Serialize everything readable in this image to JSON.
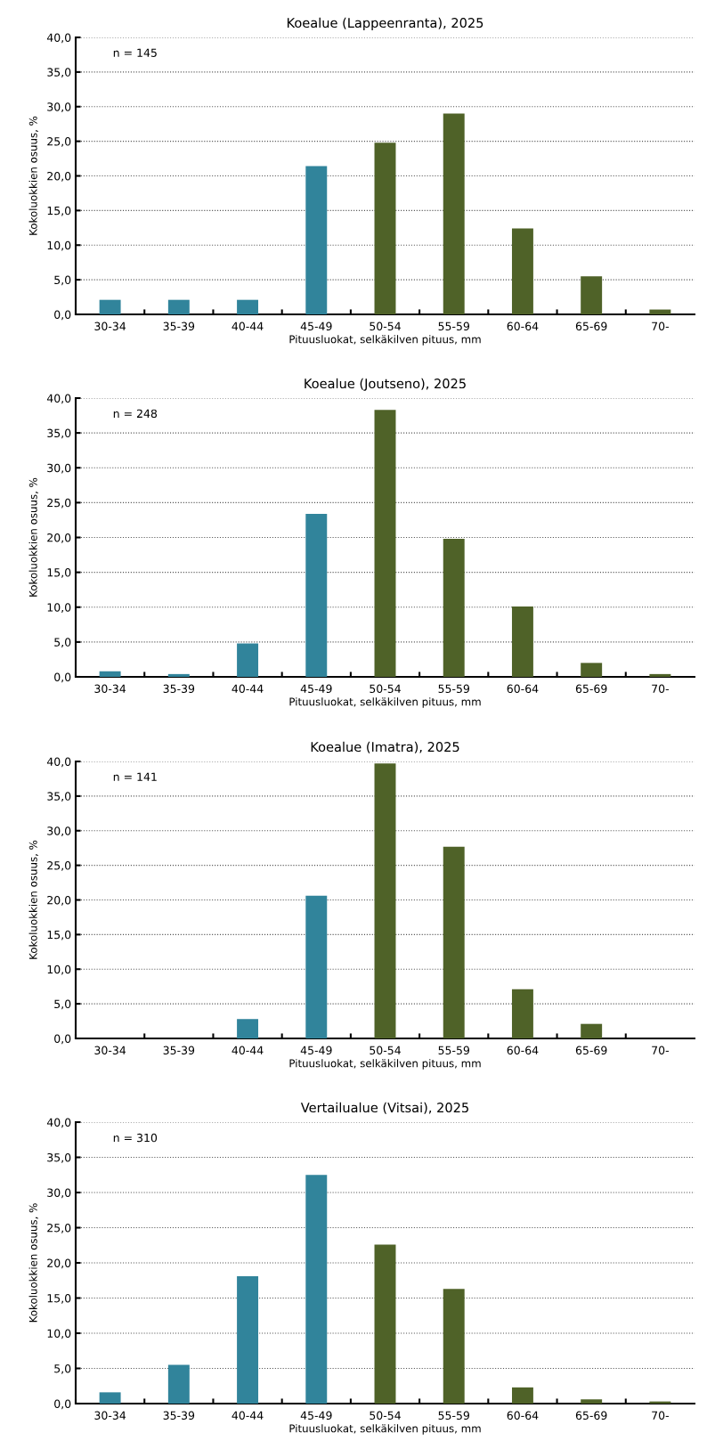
{
  "chart_data": [
    {
      "type": "bar",
      "title": "Koealue (Lappeenranta), 2025",
      "xlabel": "Pituusluokat, selkäkilven pituus, mm",
      "ylabel": "Kokoluokkien osuus, %",
      "categories": [
        "30-34",
        "35-39",
        "40-44",
        "45-49",
        "50-54",
        "55-59",
        "60-64",
        "65-69",
        "70-"
      ],
      "values": [
        2.1,
        2.1,
        2.1,
        21.4,
        24.8,
        29.0,
        12.4,
        5.5,
        0.7
      ],
      "colors": [
        "#31849b",
        "#31849b",
        "#31849b",
        "#31849b",
        "#4f6228",
        "#4f6228",
        "#4f6228",
        "#4f6228",
        "#4f6228"
      ],
      "ylim": [
        0,
        40
      ],
      "yticks": [
        {
          "value": 0,
          "label": "0,0"
        },
        {
          "value": 5,
          "label": "5,0"
        },
        {
          "value": 10,
          "label": "10,0"
        },
        {
          "value": 15,
          "label": "15,0"
        },
        {
          "value": 20,
          "label": "20,0"
        },
        {
          "value": 25,
          "label": "25,0"
        },
        {
          "value": 30,
          "label": "30,0"
        },
        {
          "value": 35,
          "label": "35,0"
        },
        {
          "value": 40,
          "label": "40,0"
        }
      ],
      "grid": "y",
      "annotations": [
        "n = 145"
      ]
    },
    {
      "type": "bar",
      "title": "Koealue (Joutseno), 2025",
      "xlabel": "Pituusluokat, selkäkilven pituus, mm",
      "ylabel": "Kokoluokkien osuus, %",
      "categories": [
        "30-34",
        "35-39",
        "40-44",
        "45-49",
        "50-54",
        "55-59",
        "60-64",
        "65-69",
        "70-"
      ],
      "values": [
        0.8,
        0.4,
        4.8,
        23.4,
        38.3,
        19.8,
        10.1,
        2.0,
        0.4
      ],
      "colors": [
        "#31849b",
        "#31849b",
        "#31849b",
        "#31849b",
        "#4f6228",
        "#4f6228",
        "#4f6228",
        "#4f6228",
        "#4f6228"
      ],
      "ylim": [
        0,
        40
      ],
      "yticks": [
        {
          "value": 0,
          "label": "0,0"
        },
        {
          "value": 5,
          "label": "5,0"
        },
        {
          "value": 10,
          "label": "10,0"
        },
        {
          "value": 15,
          "label": "15,0"
        },
        {
          "value": 20,
          "label": "20,0"
        },
        {
          "value": 25,
          "label": "25,0"
        },
        {
          "value": 30,
          "label": "30,0"
        },
        {
          "value": 35,
          "label": "35,0"
        },
        {
          "value": 40,
          "label": "40,0"
        }
      ],
      "grid": "y",
      "annotations": [
        "n = 248"
      ]
    },
    {
      "type": "bar",
      "title": "Koealue (Imatra), 2025",
      "xlabel": "Pituusluokat, selkäkilven pituus, mm",
      "ylabel": "Kokoluokkien osuus, %",
      "categories": [
        "30-34",
        "35-39",
        "40-44",
        "45-49",
        "50-54",
        "55-59",
        "60-64",
        "65-69",
        "70-"
      ],
      "values": [
        0,
        0,
        2.8,
        20.6,
        39.7,
        27.7,
        7.1,
        2.1,
        0
      ],
      "colors": [
        "#31849b",
        "#31849b",
        "#31849b",
        "#31849b",
        "#4f6228",
        "#4f6228",
        "#4f6228",
        "#4f6228",
        "#4f6228"
      ],
      "ylim": [
        0,
        40
      ],
      "yticks": [
        {
          "value": 0,
          "label": "0,0"
        },
        {
          "value": 5,
          "label": "5,0"
        },
        {
          "value": 10,
          "label": "10,0"
        },
        {
          "value": 15,
          "label": "15,0"
        },
        {
          "value": 20,
          "label": "20,0"
        },
        {
          "value": 25,
          "label": "25,0"
        },
        {
          "value": 30,
          "label": "30,0"
        },
        {
          "value": 35,
          "label": "35,0"
        },
        {
          "value": 40,
          "label": "40,0"
        }
      ],
      "grid": "y",
      "annotations": [
        "n = 141"
      ]
    },
    {
      "type": "bar",
      "title": "Vertailualue (Vitsai), 2025",
      "xlabel": "Pituusluokat, selkäkilven pituus, mm",
      "ylabel": "Kokoluokkien osuus, %",
      "categories": [
        "30-34",
        "35-39",
        "40-44",
        "45-49",
        "50-54",
        "55-59",
        "60-64",
        "65-69",
        "70-"
      ],
      "values": [
        1.6,
        5.5,
        18.1,
        32.5,
        22.6,
        16.3,
        2.3,
        0.6,
        0.3
      ],
      "colors": [
        "#31849b",
        "#31849b",
        "#31849b",
        "#31849b",
        "#4f6228",
        "#4f6228",
        "#4f6228",
        "#4f6228",
        "#4f6228"
      ],
      "ylim": [
        0,
        40
      ],
      "yticks": [
        {
          "value": 0,
          "label": "0,0"
        },
        {
          "value": 5,
          "label": "5,0"
        },
        {
          "value": 10,
          "label": "10,0"
        },
        {
          "value": 15,
          "label": "15,0"
        },
        {
          "value": 20,
          "label": "20,0"
        },
        {
          "value": 25,
          "label": "25,0"
        },
        {
          "value": 30,
          "label": "30,0"
        },
        {
          "value": 35,
          "label": "35,0"
        },
        {
          "value": 40,
          "label": "40,0"
        }
      ],
      "grid": "y",
      "annotations": [
        "n = 310"
      ]
    }
  ]
}
